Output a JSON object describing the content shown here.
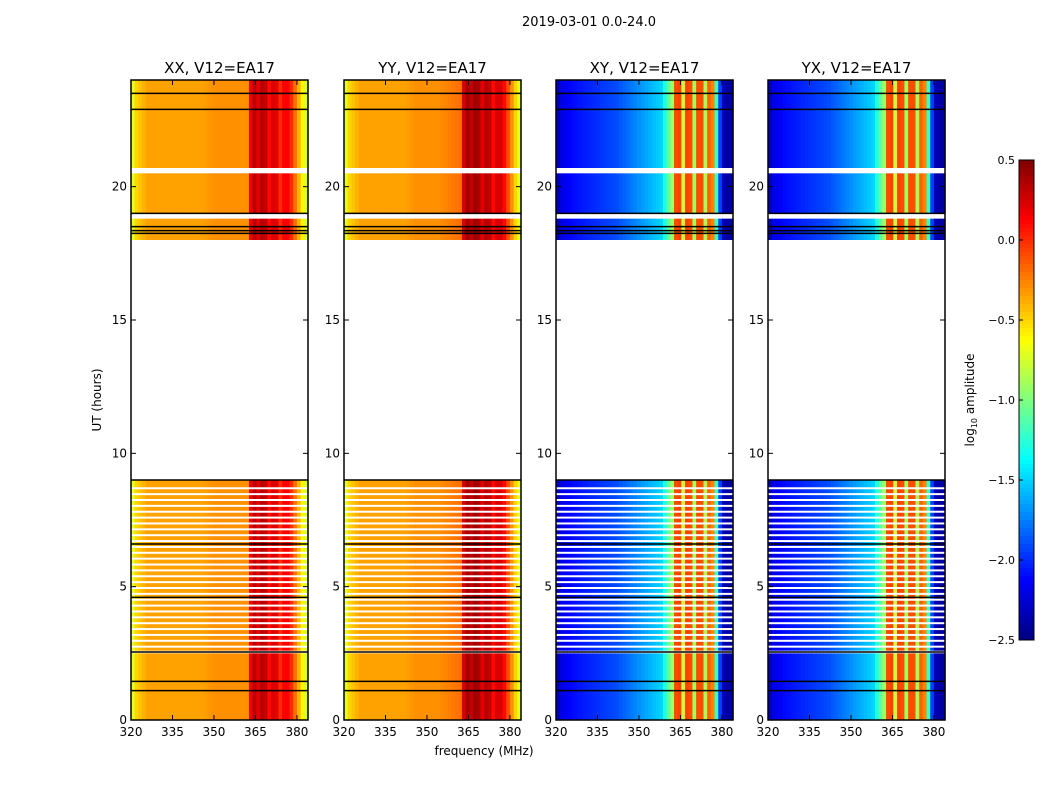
{
  "chart_data": {
    "type": "heatmap",
    "title": "2019-03-01 0.0-24.0",
    "xlabel": "frequency (MHz)",
    "ylabel": "UT (hours)",
    "xlim": [
      320,
      384
    ],
    "ylim": [
      0,
      24
    ],
    "xticks": [
      320,
      335,
      350,
      365,
      380
    ],
    "yticks": [
      0,
      5,
      10,
      15,
      20
    ],
    "colorbar": {
      "label": "log10 amplitude",
      "label_main": "log",
      "label_sub": "10",
      "label_rest": " amplitude",
      "range": [
        -2.5,
        0.5
      ],
      "ticks": [
        "0.5",
        "0.0",
        "−0.5",
        "−1.0",
        "−1.5",
        "−2.0",
        "−2.5"
      ],
      "tick_values": [
        0.5,
        0.0,
        -0.5,
        -1.0,
        -1.5,
        -2.0,
        -2.5
      ],
      "colormap": "jet"
    },
    "data_bands_hours": [
      [
        0,
        2.5
      ],
      [
        2.6,
        9.0
      ],
      [
        18.0,
        18.8
      ],
      [
        19.0,
        20.5
      ],
      [
        20.7,
        24
      ]
    ],
    "flag_lines_hours": [
      1.1,
      1.45,
      2.55,
      4.6,
      6.6,
      9.0,
      18.25,
      18.35,
      18.5,
      19.0,
      22.9,
      23.5
    ],
    "profile_freqs": [
      320,
      322,
      326,
      330,
      334,
      338,
      342,
      346,
      350,
      354,
      358,
      362,
      364,
      366,
      368,
      370,
      372,
      374,
      376,
      378,
      380,
      382,
      384
    ],
    "panels": [
      {
        "title": "XX, V12=EA17",
        "profile": [
          -0.8,
          -0.5,
          -0.35,
          -0.35,
          -0.35,
          -0.35,
          -0.35,
          -0.35,
          -0.3,
          -0.3,
          -0.3,
          -0.3,
          0.4,
          0.2,
          0.4,
          0.1,
          0.3,
          0.0,
          0.2,
          0.0,
          -0.3,
          -0.6,
          -0.8
        ]
      },
      {
        "title": "YY, V12=EA17",
        "profile": [
          -0.8,
          -0.5,
          -0.35,
          -0.35,
          -0.35,
          -0.35,
          -0.35,
          -0.3,
          -0.3,
          -0.3,
          -0.25,
          -0.2,
          0.45,
          0.3,
          0.45,
          0.2,
          0.4,
          0.1,
          0.3,
          0.1,
          -0.2,
          -0.5,
          -0.8
        ]
      },
      {
        "title": "XY, V12=EA17",
        "profile": [
          -2.4,
          -2.2,
          -2.1,
          -2.05,
          -2.0,
          -1.95,
          -1.9,
          -1.8,
          -1.7,
          -1.6,
          -1.5,
          -0.9,
          0.3,
          -0.8,
          0.3,
          -0.9,
          0.3,
          -0.9,
          0.2,
          -1.2,
          -2.3,
          -2.4,
          -2.4
        ]
      },
      {
        "title": "YX, V12=EA17",
        "profile": [
          -2.4,
          -2.2,
          -2.1,
          -2.05,
          -2.0,
          -1.95,
          -1.9,
          -1.8,
          -1.7,
          -1.6,
          -1.5,
          -0.9,
          0.3,
          -0.8,
          0.3,
          -0.9,
          0.3,
          -0.9,
          0.2,
          -1.2,
          -2.3,
          -2.4,
          -2.4
        ]
      }
    ]
  }
}
